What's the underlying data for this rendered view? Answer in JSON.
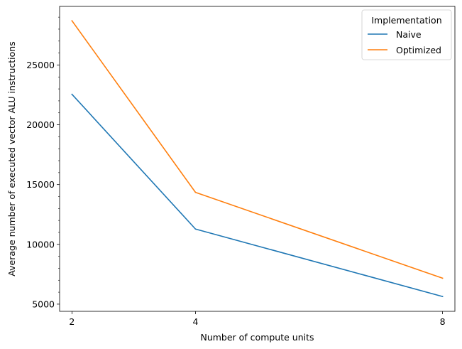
{
  "chart_data": {
    "type": "line",
    "xlabel": "Number of compute units",
    "ylabel": "Average number of executed vector ALU instructions",
    "x": [
      2,
      4,
      8
    ],
    "x_ticks": [
      "2",
      "4",
      "8"
    ],
    "xlim": [
      1.8,
      8.2
    ],
    "ylim": [
      4400,
      29900
    ],
    "y_ticks": [
      5000,
      10000,
      15000,
      20000,
      25000
    ],
    "y_tick_labels": [
      "5000",
      "10000",
      "15000",
      "20000",
      "25000"
    ],
    "y_minor_tick_step": 1000,
    "grid": false,
    "legend": {
      "title": "Implementation",
      "placement": "top-right"
    },
    "series": [
      {
        "name": "Naive",
        "color": "#1f77b4",
        "values": [
          22550,
          11280,
          5640
        ]
      },
      {
        "name": "Optimized",
        "color": "#ff7f0e",
        "values": [
          28700,
          14350,
          7170
        ]
      }
    ]
  }
}
